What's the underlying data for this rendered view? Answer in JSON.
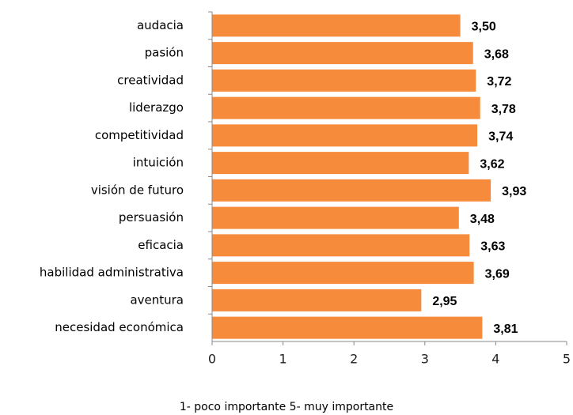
{
  "chart_data": {
    "type": "bar",
    "orientation": "horizontal",
    "categories": [
      "audacia",
      "pasión",
      "creatividad",
      "liderazgo",
      "competitividad",
      "intuición",
      "visión de futuro",
      "persuasión",
      "eficacia",
      "habilidad administrativa",
      "aventura",
      "necesidad económica"
    ],
    "values": [
      3.5,
      3.68,
      3.72,
      3.78,
      3.74,
      3.62,
      3.93,
      3.48,
      3.63,
      3.69,
      2.95,
      3.81
    ],
    "value_labels": [
      "3,50",
      "3,68",
      "3,72",
      "3,78",
      "3,74",
      "3,62",
      "3,93",
      "3,48",
      "3,63",
      "3,69",
      "2,95",
      "3,81"
    ],
    "color": "#f68b3c",
    "xlim": [
      0,
      5
    ],
    "xticks": [
      0,
      1,
      2,
      3,
      4,
      5
    ],
    "x_label": "1- poco importante 5- muy importante"
  }
}
